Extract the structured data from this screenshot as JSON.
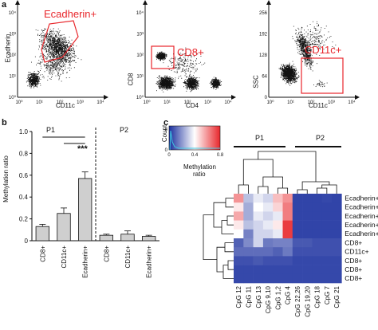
{
  "panels": {
    "a": "a",
    "b": "b",
    "c": "c"
  },
  "flow": [
    {
      "ylabel": "Ecadherin",
      "xlabel": "CD11c",
      "gate_label": "Ecadherin+",
      "xticks": [
        "10⁰",
        "10¹",
        "10²",
        "10³",
        "10⁴"
      ],
      "yticks": [
        "10⁰",
        "10¹",
        "10²",
        "10³",
        "10⁴"
      ]
    },
    {
      "ylabel": "CD8",
      "xlabel": "CD4",
      "gate_label": "CD8+",
      "xticks": [
        "10⁰",
        "10¹",
        "10²",
        "10³",
        "10⁴"
      ],
      "yticks": [
        "10⁰",
        "10¹",
        "10²",
        "10³",
        "10⁴"
      ]
    },
    {
      "ylabel": "SSC",
      "xlabel": "CD11c",
      "gate_label": "CD11c+",
      "xticks": [
        "10⁰",
        "10¹",
        "10²",
        "10³",
        "10⁴"
      ],
      "yticks": [
        "0",
        "64",
        "128",
        "192",
        "256"
      ]
    }
  ],
  "chart_data": {
    "type": "bar",
    "ylabel": "Methylation ratio",
    "ylim": [
      0,
      1.0
    ],
    "yticks": [
      "0",
      "0.2",
      "0.4",
      "0.6",
      "0.8",
      "1.0"
    ],
    "groups": [
      "P1",
      "P2"
    ],
    "categories": [
      "CD8+",
      "CD11c+",
      "Ecadherin+",
      "CD8+",
      "CD11c+",
      "Ecadherin+"
    ],
    "values": [
      0.13,
      0.25,
      0.57,
      0.05,
      0.06,
      0.04
    ],
    "errors": [
      0.02,
      0.05,
      0.06,
      0.01,
      0.03,
      0.01
    ],
    "color": "#cfcfcf",
    "significance": "***"
  },
  "heatmap": {
    "legend_title": "Count",
    "legend_xlabel": "Methylation ratio",
    "legend_yticks": [
      "0",
      "8"
    ],
    "legend_xticks": [
      "0",
      "0.4",
      "0.8"
    ],
    "groups": [
      "P1",
      "P2"
    ],
    "columns": [
      "CpG 12",
      "CpG 11",
      "CpG 13",
      "CpG 9,10",
      "CpG 1,2",
      "CpG 4",
      "CpG 22,26",
      "CpG 19,20",
      "CpG 18",
      "CpG 7",
      "CpG 21"
    ],
    "rows": [
      "Ecadherin+",
      "Ecadherin+",
      "Ecadherin+",
      "Ecadherin+",
      "Ecadherin+",
      "CD8+",
      "CD11c+",
      "CD8+",
      "CD8+",
      "CD8+"
    ],
    "values": [
      [
        0.75,
        0.35,
        0.45,
        0.4,
        0.65,
        0.75,
        0.05,
        0.05,
        0.05,
        0.06,
        0.05
      ],
      [
        0.55,
        0.3,
        0.5,
        0.45,
        0.6,
        0.8,
        0.05,
        0.05,
        0.05,
        0.05,
        0.05
      ],
      [
        0.7,
        0.3,
        0.45,
        0.4,
        0.45,
        0.8,
        0.05,
        0.05,
        0.05,
        0.05,
        0.05
      ],
      [
        0.55,
        0.35,
        0.4,
        0.45,
        0.55,
        0.95,
        0.05,
        0.05,
        0.05,
        0.05,
        0.05
      ],
      [
        0.5,
        0.2,
        0.4,
        0.4,
        0.45,
        0.95,
        0.05,
        0.05,
        0.05,
        0.05,
        0.05
      ],
      [
        0.12,
        0.22,
        0.4,
        0.18,
        0.2,
        0.2,
        0.1,
        0.1,
        0.08,
        0.08,
        0.08
      ],
      [
        0.15,
        0.15,
        0.15,
        0.15,
        0.12,
        0.18,
        0.08,
        0.08,
        0.08,
        0.08,
        0.08
      ],
      [
        0.08,
        0.08,
        0.1,
        0.08,
        0.08,
        0.08,
        0.06,
        0.06,
        0.06,
        0.06,
        0.06
      ],
      [
        0.06,
        0.06,
        0.06,
        0.06,
        0.06,
        0.06,
        0.06,
        0.06,
        0.06,
        0.06,
        0.06
      ],
      [
        0.06,
        0.06,
        0.06,
        0.06,
        0.06,
        0.06,
        0.06,
        0.06,
        0.06,
        0.06,
        0.06
      ]
    ]
  },
  "colors": {
    "gate": "#e8262b",
    "low": "#1a2f9e",
    "mid": "#ffffff",
    "high": "#e8262b",
    "hist": "#3fc6e0"
  }
}
